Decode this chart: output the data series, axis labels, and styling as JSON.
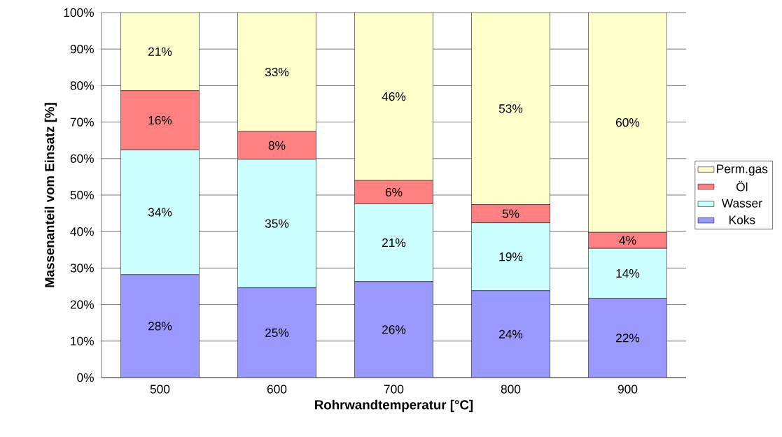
{
  "chart_data": {
    "type": "bar",
    "stacked": true,
    "xlabel": "Rohrwandtemperatur [°C]",
    "ylabel": "Massenanteil vom Einsatz [%]",
    "categories": [
      "500",
      "600",
      "700",
      "800",
      "900"
    ],
    "series": [
      {
        "name": "Koks",
        "color": "#9999ff",
        "values": [
          28.2,
          24.6,
          26.3,
          23.8,
          21.7
        ],
        "value_labels": [
          "28%",
          "25%",
          "26%",
          "24%",
          "22%"
        ]
      },
      {
        "name": "Wasser",
        "color": "#ccffff",
        "values": [
          34.2,
          35.2,
          21.3,
          18.6,
          13.7
        ],
        "value_labels": [
          "34%",
          "35%",
          "21%",
          "19%",
          "14%"
        ]
      },
      {
        "name": "Öl",
        "color": "#ff8080",
        "values": [
          16.2,
          7.6,
          6.4,
          5.0,
          4.4
        ],
        "value_labels": [
          "16%",
          "8%",
          "6%",
          "5%",
          "4%"
        ]
      },
      {
        "name": "Perm.gas",
        "color": "#ffffcc",
        "values": [
          21.4,
          32.6,
          46.0,
          52.6,
          60.2
        ],
        "value_labels": [
          "21%",
          "33%",
          "46%",
          "53%",
          "60%"
        ]
      }
    ],
    "ylim": [
      0,
      100
    ],
    "yticks": [
      {
        "value": 0,
        "label": "0%"
      },
      {
        "value": 10,
        "label": "10%"
      },
      {
        "value": 20,
        "label": "20%"
      },
      {
        "value": 30,
        "label": "30%"
      },
      {
        "value": 40,
        "label": "40%"
      },
      {
        "value": 50,
        "label": "50%"
      },
      {
        "value": 60,
        "label": "60%"
      },
      {
        "value": 70,
        "label": "70%"
      },
      {
        "value": 80,
        "label": "80%"
      },
      {
        "value": 90,
        "label": "90%"
      },
      {
        "value": 100,
        "label": "100%"
      }
    ],
    "grid": "y",
    "legend": "right"
  }
}
